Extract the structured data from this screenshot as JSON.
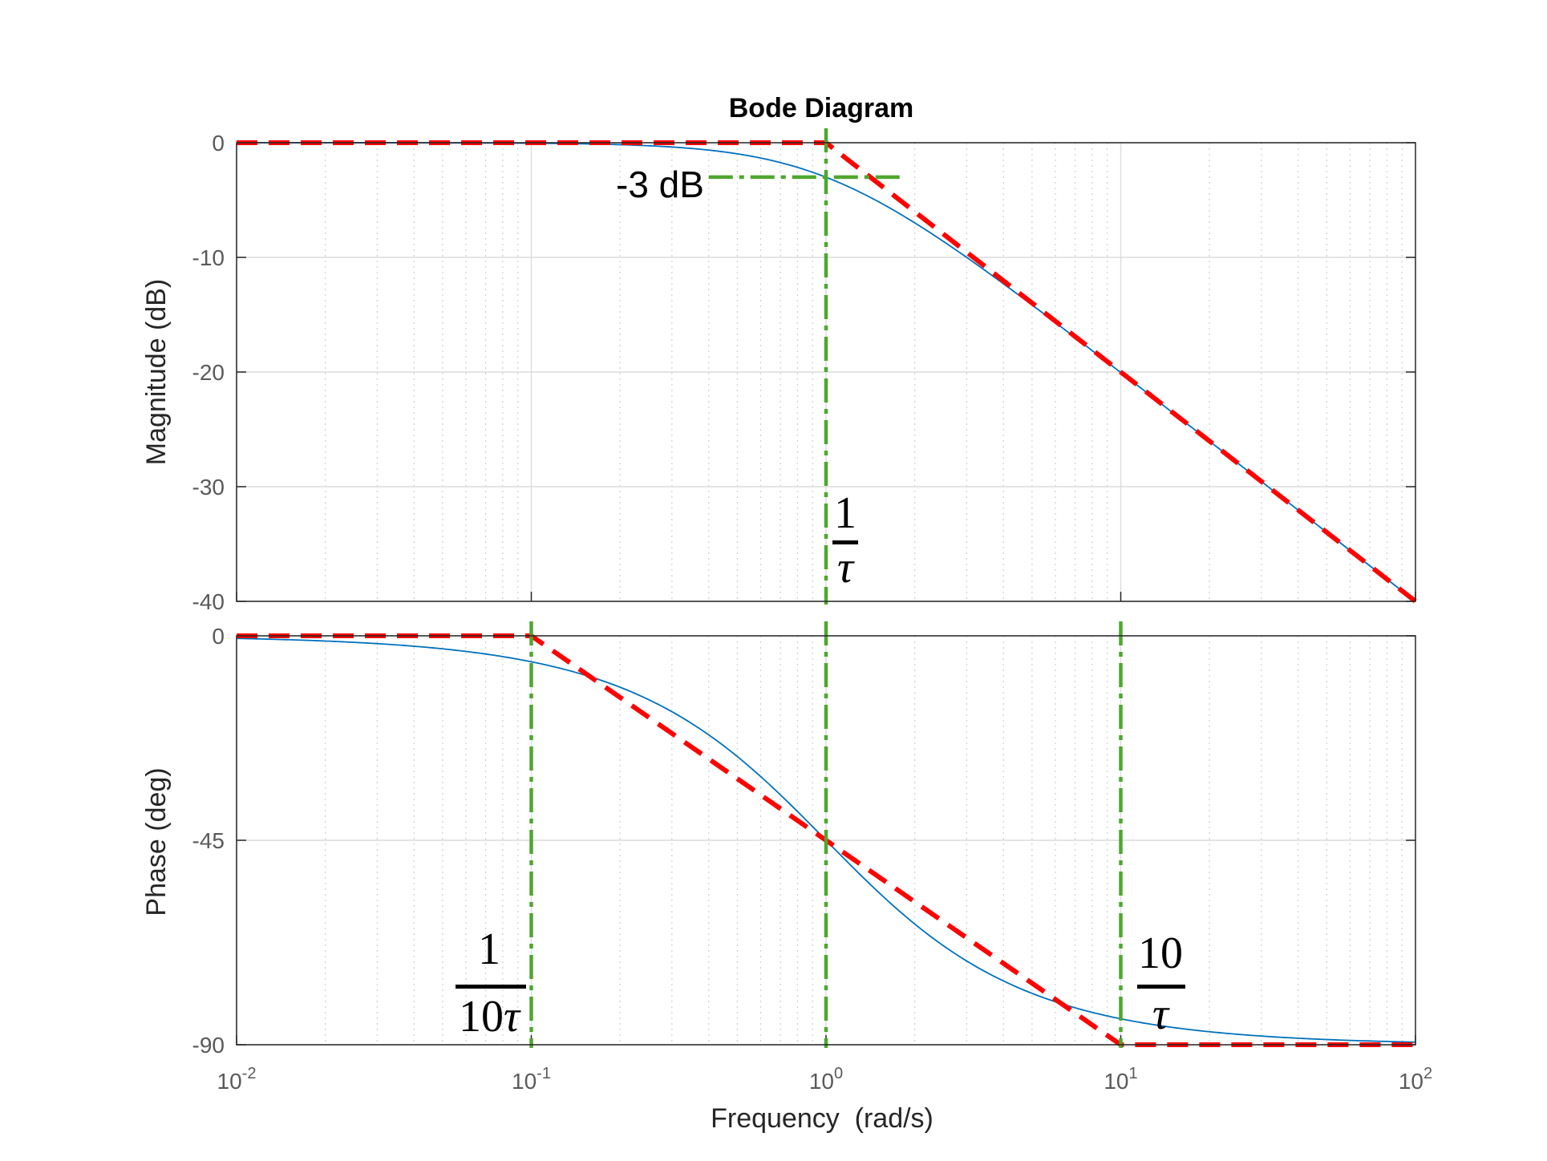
{
  "chart_data": {
    "type": "line",
    "title": "Bode Diagram",
    "xlabel": "Frequency  (rad/s)",
    "x_scale": "log",
    "xlim": [
      0.01,
      100
    ],
    "x_ticks": [
      {
        "base": "10",
        "exp": "-2"
      },
      {
        "base": "10",
        "exp": "-1"
      },
      {
        "base": "10",
        "exp": "0"
      },
      {
        "base": "10",
        "exp": "1"
      },
      {
        "base": "10",
        "exp": "2"
      }
    ],
    "grid": true,
    "panels": [
      {
        "name": "magnitude",
        "ylabel": "Magnitude (dB)",
        "ylim": [
          -40,
          0
        ],
        "yticks": [
          "0",
          "-10",
          "-20",
          "-30",
          "-40"
        ],
        "series": [
          {
            "style": "solid",
            "color": "#0072bd",
            "formula": "magnitude_db = -10*log10(1 + w^2)"
          },
          {
            "style": "dashed",
            "color": "#ff0000",
            "points": [
              [
                0.01,
                0
              ],
              [
                1,
                0
              ],
              [
                100,
                -40
              ]
            ]
          }
        ],
        "guides": [
          {
            "style": "dash-dot",
            "color": "#4ea72e",
            "points": [
              [
                1,
                0
              ],
              [
                1,
                -40
              ]
            ]
          },
          {
            "style": "dash-dot",
            "color": "#4ea72e",
            "points": [
              [
                0.4,
                -3
              ],
              [
                1.8,
                -3
              ]
            ]
          }
        ]
      },
      {
        "name": "phase",
        "ylabel": "Phase (deg)",
        "ylim": [
          -90,
          0
        ],
        "yticks": [
          "0",
          "-45",
          "-90"
        ],
        "series": [
          {
            "style": "solid",
            "color": "#0072bd",
            "formula": "phase_deg = -atan(w)"
          },
          {
            "style": "dashed",
            "color": "#ff0000",
            "points": [
              [
                0.01,
                0
              ],
              [
                0.1,
                0
              ],
              [
                10,
                -90
              ],
              [
                100,
                -90
              ]
            ]
          }
        ],
        "guides": [
          {
            "style": "dash-dot",
            "color": "#4ea72e",
            "points": [
              [
                0.1,
                0
              ],
              [
                0.1,
                -90
              ]
            ]
          },
          {
            "style": "dash-dot",
            "color": "#4ea72e",
            "points": [
              [
                1,
                0
              ],
              [
                1,
                -90
              ]
            ]
          },
          {
            "style": "dash-dot",
            "color": "#4ea72e",
            "points": [
              [
                10,
                0
              ],
              [
                10,
                -90
              ]
            ]
          }
        ]
      }
    ],
    "annotations": {
      "minus3db": "-3 dB",
      "corner": {
        "num": "1",
        "den": "τ"
      },
      "tenth": {
        "num": "1",
        "den_prefix": "10",
        "den": "τ"
      },
      "ten": {
        "num": "10",
        "den": "τ"
      }
    }
  }
}
